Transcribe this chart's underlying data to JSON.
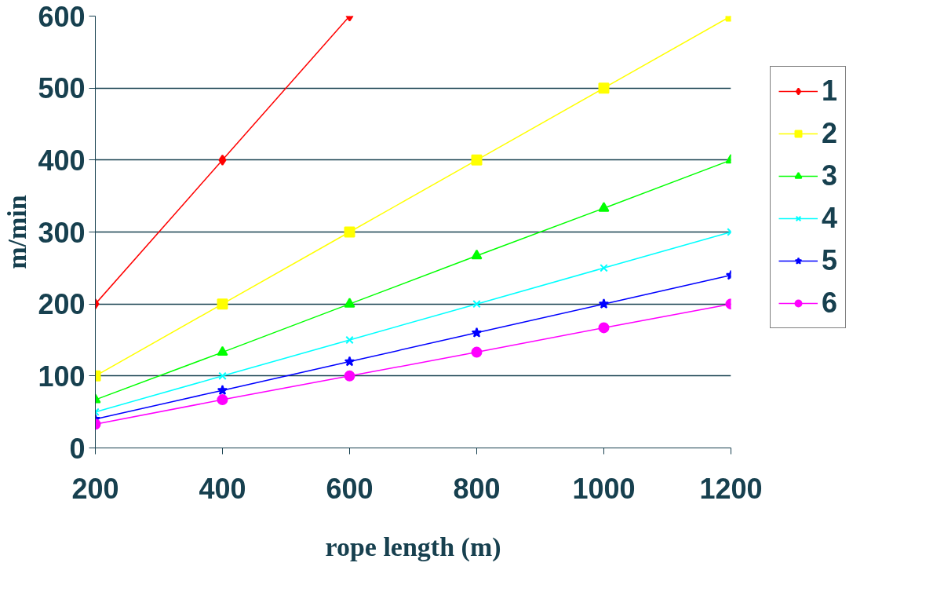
{
  "chart_data": {
    "type": "line",
    "xlabel": "rope length (m)",
    "ylabel": "m/min",
    "x": [
      200,
      400,
      600,
      800,
      1000,
      1200
    ],
    "xlim": [
      200,
      1200
    ],
    "xticks": [
      200,
      400,
      600,
      800,
      1000,
      1200
    ],
    "ylim": [
      0,
      600
    ],
    "yticks": [
      0,
      100,
      200,
      300,
      400,
      500,
      600
    ],
    "grid": "y",
    "legend": "right",
    "series": [
      {
        "name": "1",
        "color": "#ff0000",
        "marker": "diamond",
        "values": [
          200,
          400,
          600,
          null,
          null,
          null
        ]
      },
      {
        "name": "2",
        "color": "#ffff00",
        "marker": "square",
        "values": [
          100,
          200,
          300,
          400,
          500,
          600
        ]
      },
      {
        "name": "3",
        "color": "#00ff00",
        "marker": "triangle",
        "values": [
          67,
          133,
          200,
          267,
          333,
          400
        ]
      },
      {
        "name": "4",
        "color": "#00ffff",
        "marker": "cross",
        "values": [
          50,
          100,
          150,
          200,
          250,
          300
        ]
      },
      {
        "name": "5",
        "color": "#0000ff",
        "marker": "star",
        "values": [
          40,
          80,
          120,
          160,
          200,
          240
        ]
      },
      {
        "name": "6",
        "color": "#ff00ff",
        "marker": "circle",
        "values": [
          33,
          67,
          100,
          133,
          167,
          200
        ]
      }
    ]
  }
}
